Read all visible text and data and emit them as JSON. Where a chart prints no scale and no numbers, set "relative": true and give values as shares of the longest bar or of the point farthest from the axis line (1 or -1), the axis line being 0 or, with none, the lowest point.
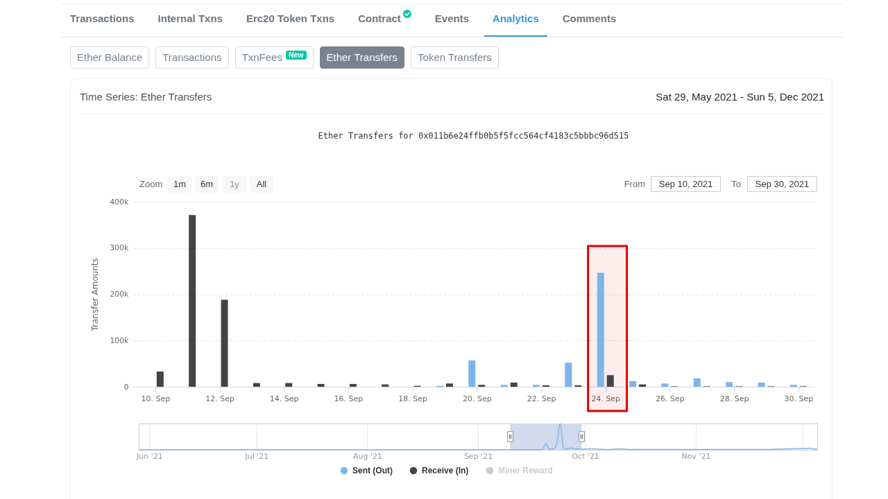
{
  "chart_data": [
    {
      "type": "other",
      "annotations": [
        "Transactions",
        "Internal Txns",
        "Erc20 Token Txns",
        "Contract",
        "Events",
        "Analytics",
        "Comments"
      ]
    },
    {
      "type": "other",
      "annotations": [
        "Ether Balance",
        "Transactions",
        "TxnFees",
        "New",
        "Ether Transfers",
        "Token Transfers"
      ]
    },
    {
      "type": "bar",
      "title": "Ether Transfers for 0x011b6e24ffb0b5f5fcc564cf4183c5bbbc96d515",
      "ylabel": "Transfer Amounts",
      "x": [
        "2021-09-10",
        "2021-09-11",
        "2021-09-12",
        "2021-09-13",
        "2021-09-14",
        "2021-09-15",
        "2021-09-16",
        "2021-09-17",
        "2021-09-18",
        "2021-09-19",
        "2021-09-20",
        "2021-09-21",
        "2021-09-22",
        "2021-09-23",
        "2021-09-24",
        "2021-09-25",
        "2021-09-26",
        "2021-09-27",
        "2021-09-28",
        "2021-09-29",
        "2021-09-30"
      ],
      "series": [
        {
          "name": "Sent (Out)",
          "color": "#7cb5ec",
          "values": [
            null,
            null,
            null,
            null,
            null,
            null,
            null,
            null,
            null,
            2000,
            57000,
            4000,
            4000,
            52000,
            246000,
            12000,
            7000,
            18000,
            10000,
            9000,
            4000
          ]
        },
        {
          "name": "Receive (In)",
          "color": "#434348",
          "values": [
            33000,
            371000,
            188000,
            8000,
            8000,
            6000,
            6000,
            5000,
            2000,
            7000,
            4000,
            9000,
            3000,
            3000,
            25000,
            5000,
            1000,
            1000,
            1000,
            1000,
            1000
          ]
        },
        {
          "name": "Miner Reward",
          "color": "#cccccc",
          "values": [
            null,
            null,
            null,
            null,
            null,
            null,
            null,
            null,
            null,
            null,
            null,
            null,
            null,
            null,
            null,
            null,
            null,
            null,
            null,
            null,
            null
          ]
        }
      ],
      "xlim": [
        "2021-09-09T07:00",
        "2021-09-30T12:00"
      ],
      "xticks": [
        {
          "value": "2021-09-10",
          "label": "10. Sep"
        },
        {
          "value": "2021-09-12",
          "label": "12. Sep"
        },
        {
          "value": "2021-09-14",
          "label": "14. Sep"
        },
        {
          "value": "2021-09-16",
          "label": "16. Sep"
        },
        {
          "value": "2021-09-18",
          "label": "18. Sep"
        },
        {
          "value": "2021-09-20",
          "label": "20. Sep"
        },
        {
          "value": "2021-09-22",
          "label": "22. Sep"
        },
        {
          "value": "2021-09-24",
          "label": "24. Sep"
        },
        {
          "value": "2021-09-26",
          "label": "26. Sep"
        },
        {
          "value": "2021-09-28",
          "label": "28. Sep"
        },
        {
          "value": "2021-09-30",
          "label": "30. Sep"
        }
      ],
      "ylim": [
        0,
        400000
      ],
      "yticks": [
        0,
        {
          "value": 100000,
          "label": "100k"
        },
        {
          "value": 200000,
          "label": "200k"
        },
        {
          "value": 300000,
          "label": "300k"
        },
        {
          "value": 400000,
          "label": "400k"
        }
      ],
      "grid": "y",
      "legend": "bottom",
      "bands": [
        {
          "axis": "x",
          "from": "2021-09-23T11:00",
          "to": "2021-09-24T16:00",
          "color": "#e00000"
        }
      ],
      "annotations": [
        "Time Series: Ether Transfers",
        "Sat 29, May 2021 - Sun 5, Dec 2021",
        "Zoom",
        "1m",
        "6m",
        "1y",
        "All",
        "From",
        "Sep 10, 2021",
        "To",
        "Sep 30, 2021"
      ]
    },
    {
      "type": "line",
      "color": "#7cb5ec",
      "relative": true,
      "x": [
        "2021-05-29",
        "2021-06-15",
        "2021-07-15",
        "2021-08-15",
        "2021-09-01",
        "2021-09-18",
        "2021-09-19",
        "2021-09-20",
        "2021-09-21",
        "2021-09-22",
        "2021-09-23",
        "2021-09-24",
        "2021-09-25",
        "2021-09-26",
        "2021-09-27",
        "2021-09-28",
        "2021-09-29",
        "2021-09-30",
        "2021-10-03",
        "2021-10-07",
        "2021-10-10",
        "2021-10-15",
        "2021-11-01",
        "2021-11-20",
        "2021-12-03",
        "2021-12-05"
      ],
      "values": [
        0,
        0,
        0,
        0,
        0,
        0,
        0.01,
        0.23,
        0.02,
        0.02,
        0.21,
        1,
        0.05,
        0.03,
        0.07,
        0.04,
        0.04,
        0.02,
        0.04,
        0.01,
        0.03,
        0.01,
        0.01,
        0.01,
        0.05,
        0.01
      ],
      "xlim": [
        "2021-05-29",
        "2021-12-05"
      ],
      "xticks": [
        {
          "value": "2021-06-01",
          "label": "Jun '21"
        },
        {
          "value": "2021-07-01",
          "label": "Jul '21"
        },
        {
          "value": "2021-08-01",
          "label": "Aug '21"
        },
        {
          "value": "2021-09-01",
          "label": "Sep '21"
        },
        {
          "value": "2021-10-01",
          "label": "Oct '21"
        },
        {
          "value": "2021-11-01",
          "label": "Nov '21"
        },
        {
          "value": "2021-12-01",
          "label": null
        }
      ],
      "grid": "x",
      "bands": [
        {
          "axis": "x",
          "from": "2021-09-10",
          "to": "2021-09-30",
          "color": "#d2daee"
        }
      ]
    }
  ]
}
